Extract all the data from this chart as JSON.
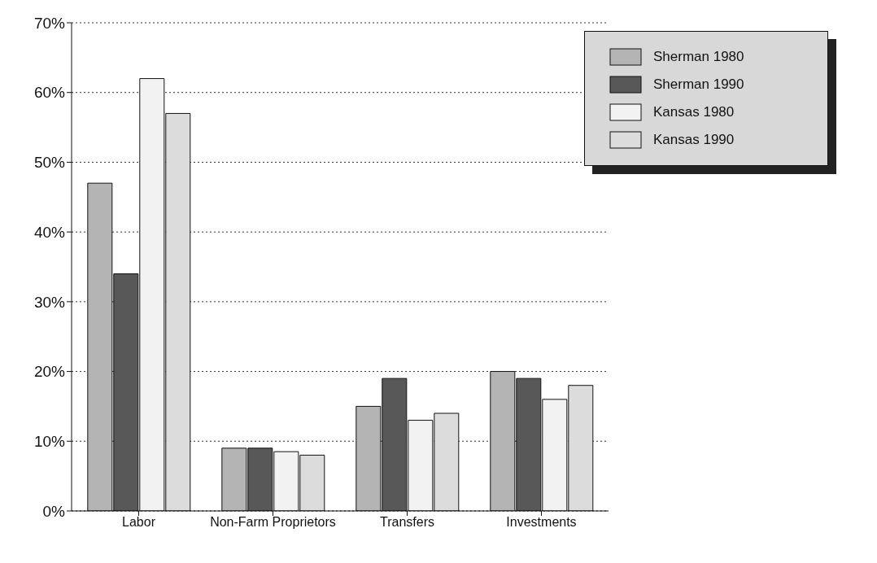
{
  "chart_data": {
    "type": "bar",
    "categories": [
      "Labor",
      "Non-Farm Proprietors",
      "Transfers",
      "Investments"
    ],
    "series": [
      {
        "name": "Sherman 1980",
        "color": "#b4b4b4",
        "values": [
          47,
          9,
          15,
          20
        ]
      },
      {
        "name": "Sherman 1990",
        "color": "#585858",
        "values": [
          34,
          9,
          19,
          19
        ]
      },
      {
        "name": "Kansas 1980",
        "color": "#f2f2f2",
        "values": [
          62,
          8.5,
          13,
          16
        ]
      },
      {
        "name": "Kansas 1990",
        "color": "#dcdcdc",
        "values": [
          57,
          8,
          14,
          18
        ]
      }
    ],
    "ylim": [
      0,
      70
    ],
    "yticks": [
      {
        "value": 0,
        "label": "0%"
      },
      {
        "value": 10,
        "label": "10%"
      },
      {
        "value": 20,
        "label": "20%"
      },
      {
        "value": 30,
        "label": "30%"
      },
      {
        "value": 40,
        "label": "40%"
      },
      {
        "value": 50,
        "label": "50%"
      },
      {
        "value": 60,
        "label": "60%"
      },
      {
        "value": 70,
        "label": "70%"
      }
    ],
    "grid": "y",
    "legend": "top right"
  }
}
